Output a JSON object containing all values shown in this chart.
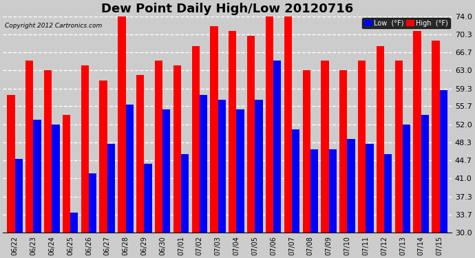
{
  "title": "Dew Point Daily High/Low 20120716",
  "copyright": "Copyright 2012 Cartronics.com",
  "dates": [
    "06/22",
    "06/23",
    "06/24",
    "06/25",
    "06/26",
    "06/27",
    "06/28",
    "06/29",
    "06/30",
    "07/01",
    "07/02",
    "07/03",
    "07/04",
    "07/05",
    "07/06",
    "07/07",
    "07/08",
    "07/09",
    "07/10",
    "07/11",
    "07/12",
    "07/13",
    "07/14",
    "07/15"
  ],
  "high": [
    58,
    65,
    63,
    54,
    64,
    61,
    75,
    62,
    65,
    64,
    68,
    72,
    71,
    70,
    74,
    74,
    63,
    65,
    63,
    65,
    68,
    65,
    71,
    69
  ],
  "low": [
    45,
    53,
    52,
    34,
    42,
    48,
    56,
    44,
    55,
    46,
    58,
    57,
    55,
    57,
    65,
    51,
    47,
    47,
    49,
    48,
    46,
    52,
    54,
    59
  ],
  "high_color": "#ff0000",
  "low_color": "#0000ff",
  "ylim": [
    30.0,
    74.0
  ],
  "ymin": 30.0,
  "yticks": [
    30.0,
    33.7,
    37.3,
    41.0,
    44.7,
    48.3,
    52.0,
    55.7,
    59.3,
    63.0,
    66.7,
    70.3,
    74.0
  ],
  "bg_color": "#cccccc",
  "grid_color": "#ffffff",
  "title_fontsize": 13,
  "legend_low_label": "Low  (°F)",
  "legend_high_label": "High  (°F)"
}
